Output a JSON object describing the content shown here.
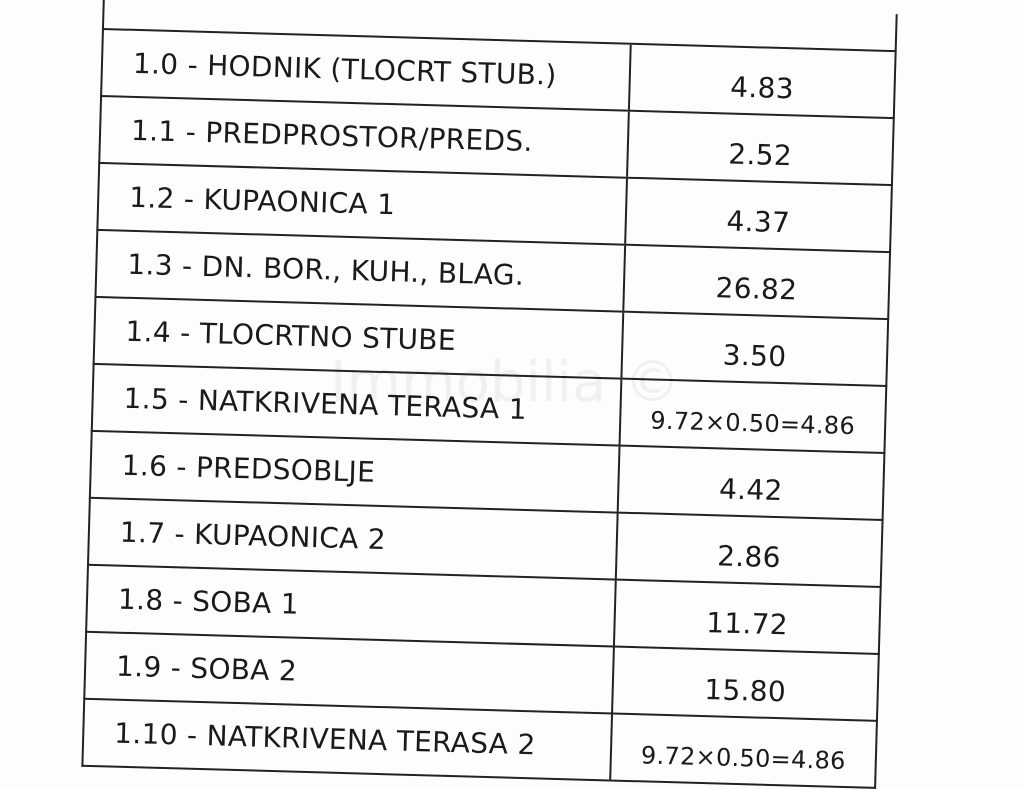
{
  "watermark": "Immobilia ©",
  "rows": [
    {
      "name": "1.0 - HODNIK (TLOCRT STUB.)",
      "value": "4.83"
    },
    {
      "name": "1.1 - PREDPROSTOR/PREDS.",
      "value": "2.52"
    },
    {
      "name": "1.2 - KUPAONICA 1",
      "value": "4.37"
    },
    {
      "name": "1.3 - DN. BOR., KUH., BLAG.",
      "value": "26.82"
    },
    {
      "name": "1.4 - TLOCRTNO STUBE",
      "value": "3.50"
    },
    {
      "name": "1.5 - NATKRIVENA TERASA 1",
      "value": "9.72×0.50=4.86"
    },
    {
      "name": "1.6 - PREDSOBLJE",
      "value": "4.42"
    },
    {
      "name": "1.7 - KUPAONICA 2",
      "value": "2.86"
    },
    {
      "name": "1.8 - SOBA 1",
      "value": "11.72"
    },
    {
      "name": "1.9 - SOBA 2",
      "value": "15.80"
    },
    {
      "name": "1.10 - NATKRIVENA TERASA 2",
      "value": "9.72×0.50=4.86"
    }
  ]
}
